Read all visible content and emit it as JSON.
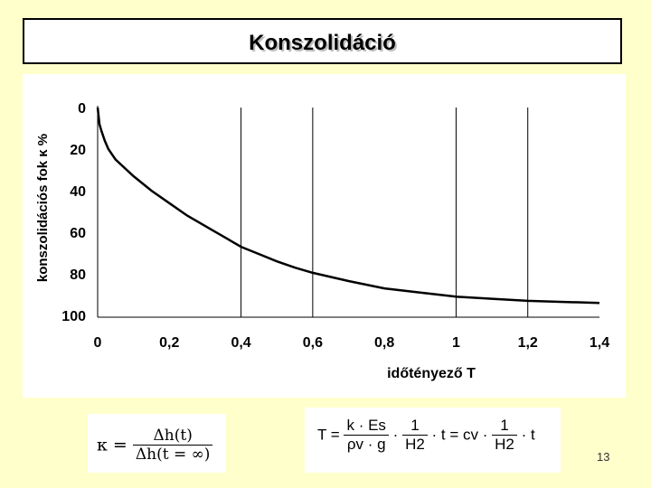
{
  "slide": {
    "title": "Konszolidáció",
    "page_number": "13",
    "background_color": "#FFFFCC"
  },
  "chart_data": {
    "type": "line",
    "xlabel": "időtényező  T",
    "ylabel": "konszolidációs fok  κ  %",
    "xlim": [
      0,
      1.4
    ],
    "ylim": [
      0,
      100
    ],
    "y_inverted": true,
    "x_ticks": [
      "0",
      "0,2",
      "0,4",
      "0,6",
      "0,8",
      "1",
      "1,2",
      "1,4"
    ],
    "x_tick_values": [
      0,
      0.2,
      0.4,
      0.6,
      0.8,
      1.0,
      1.2,
      1.4
    ],
    "y_ticks": [
      "0",
      "20",
      "40",
      "60",
      "80",
      "100"
    ],
    "y_tick_values": [
      0,
      20,
      40,
      60,
      80,
      100
    ],
    "vertical_gridlines_at": [
      0.4,
      0.6,
      1.0,
      1.2
    ],
    "series": [
      {
        "color": "#000000",
        "x": [
          0,
          0.005,
          0.01,
          0.02,
          0.03,
          0.05,
          0.1,
          0.15,
          0.2,
          0.25,
          0.3,
          0.35,
          0.4,
          0.45,
          0.5,
          0.55,
          0.6,
          0.7,
          0.8,
          0.9,
          1.0,
          1.1,
          1.2,
          1.3,
          1.4
        ],
        "y": [
          0,
          8,
          11,
          16,
          20,
          25,
          33,
          40,
          46,
          52,
          57,
          62,
          67,
          70.5,
          74,
          77,
          79.5,
          83.5,
          87,
          89,
          91,
          92,
          93,
          93.5,
          94
        ]
      }
    ]
  },
  "formulas": {
    "kappa": {
      "lhs": "κ =",
      "numerator": "Δh(t)",
      "denominator": "Δh(t = ∞)"
    },
    "T": {
      "lhs": "T =",
      "frac1_num": "k · Es",
      "frac1_den": "ρv · g",
      "dot1": "·",
      "frac2_num": "1",
      "frac2_den": "H2",
      "middle": "· t = cv ·",
      "frac3_num": "1",
      "frac3_den": "H2",
      "tail": "· t"
    }
  }
}
